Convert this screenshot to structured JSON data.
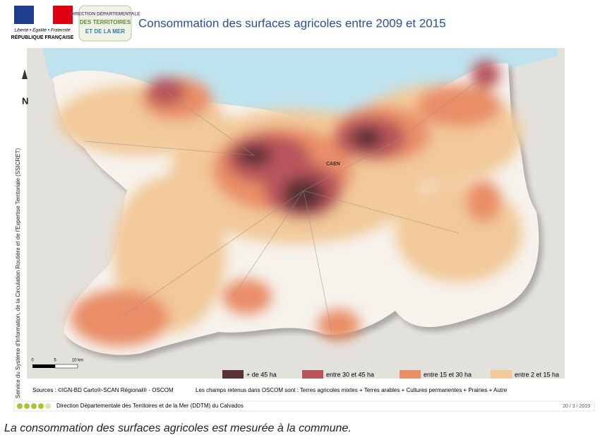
{
  "header": {
    "republic_motto": "Liberté • Égalité • Fraternité",
    "republic_name": "RÉPUBLIQUE FRANÇAISE",
    "ddtm_logo": [
      "DIRECTION DÉPARTEMENTALE",
      "DES TERRITOIRES",
      "ET DE LA MER"
    ],
    "title": "Consommation des surfaces agricoles entre 2009 et 2015"
  },
  "map": {
    "north": "N",
    "city": "CAEN",
    "scale": [
      "0",
      "5",
      "10 km"
    ],
    "side_text": "Service du Système d'Information, de la Circulation Routière et de l'Expertise Territoriale (SSICRET)"
  },
  "legend": [
    {
      "label": "+ de 45 ha",
      "color": "#5a3136"
    },
    {
      "label": "entre 30 et 45 ha",
      "color": "#b8545c"
    },
    {
      "label": "entre 15 et 30 ha",
      "color": "#e98e67"
    },
    {
      "label": "entre 2 et 15 ha",
      "color": "#f2c99a"
    }
  ],
  "sources": "Sources : ©IGN-BD Carto®-SCAN Régional® - OSCOM",
  "fields_note": "Les champs retenus dans OSCOM  sont : Terres agricoles mixtes + Terres arables + Cultures permanentes + Prairies + Autre",
  "footer": {
    "org": "Direction Départementale des Territoires et de la Mer (DDTM) du Calvados",
    "date": "20 / 3 / 2019"
  },
  "caption": "La consommation des surfaces agricoles est mesurée à la commune."
}
